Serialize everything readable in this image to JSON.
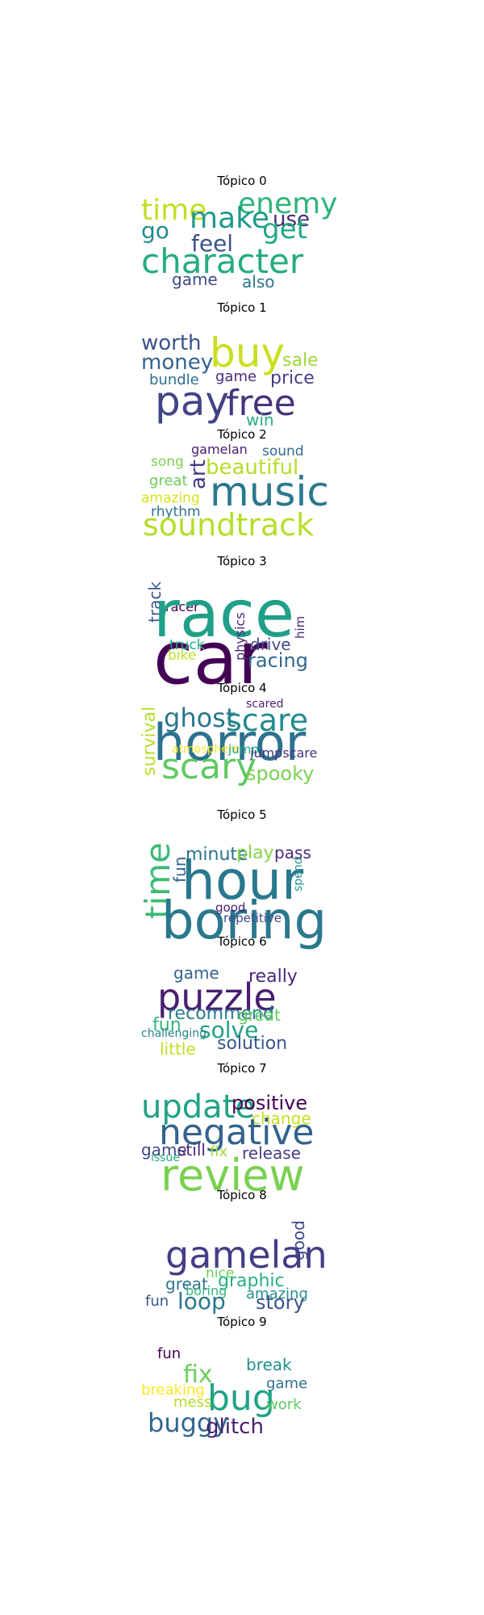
{
  "topics": [
    {
      "title": "Tópico 0",
      "words": [
        {
          "text": "time",
          "color": "#c2df23"
        },
        {
          "text": "enemy",
          "color": "#2fb47c"
        },
        {
          "text": "make",
          "color": "#1f9a8a"
        },
        {
          "text": "use",
          "color": "#482475"
        },
        {
          "text": "go",
          "color": "#238a8d"
        },
        {
          "text": "get",
          "color": "#22a884"
        },
        {
          "text": "feel",
          "color": "#3b528b"
        },
        {
          "text": "character",
          "color": "#25ab82"
        },
        {
          "text": "game",
          "color": "#3e4a89"
        },
        {
          "text": "also",
          "color": "#2c728e"
        }
      ]
    },
    {
      "title": "Tópico 1",
      "words": [
        {
          "text": "worth",
          "color": "#3b528b"
        },
        {
          "text": "buy",
          "color": "#c8e020"
        },
        {
          "text": "money",
          "color": "#33638d"
        },
        {
          "text": "sale",
          "color": "#a0da39"
        },
        {
          "text": "bundle",
          "color": "#2d708e"
        },
        {
          "text": "game",
          "color": "#482878"
        },
        {
          "text": "price",
          "color": "#433e85"
        },
        {
          "text": "pay",
          "color": "#414487"
        },
        {
          "text": "free",
          "color": "#46337e"
        },
        {
          "text": "win",
          "color": "#29af7f"
        }
      ]
    },
    {
      "title": "Tópico 2",
      "words": [
        {
          "text": "gamelan",
          "color": "#481f70"
        },
        {
          "text": "sound",
          "color": "#31688e"
        },
        {
          "text": "song",
          "color": "#7ad151"
        },
        {
          "text": "art",
          "color": "#443983"
        },
        {
          "text": "beautiful",
          "color": "#b5de2b"
        },
        {
          "text": "great",
          "color": "#6ccd5a"
        },
        {
          "text": "music",
          "color": "#2a788e"
        },
        {
          "text": "amazing",
          "color": "#d8e219"
        },
        {
          "text": "rhythm",
          "color": "#2c728e"
        },
        {
          "text": "soundtrack",
          "color": "#b5de2b"
        }
      ]
    },
    {
      "title": "Tópico 3",
      "words": [
        {
          "text": "track",
          "color": "#39568c"
        },
        {
          "text": "racer",
          "color": "#440154"
        },
        {
          "text": "race",
          "color": "#1fa088"
        },
        {
          "text": "car",
          "color": "#440154"
        },
        {
          "text": "truck",
          "color": "#22a884"
        },
        {
          "text": "physics",
          "color": "#482878"
        },
        {
          "text": "drive",
          "color": "#3e4a89"
        },
        {
          "text": "him",
          "color": "#472d7b"
        },
        {
          "text": "bike",
          "color": "#bddf26"
        },
        {
          "text": "racing",
          "color": "#31688e"
        }
      ]
    },
    {
      "title": "Tópico 4",
      "words": [
        {
          "text": "scared",
          "color": "#482475"
        },
        {
          "text": "ghost",
          "color": "#2a788e"
        },
        {
          "text": "scare",
          "color": "#238a8d"
        },
        {
          "text": "survival",
          "color": "#b5de2b"
        },
        {
          "text": "horror",
          "color": "#2c728e"
        },
        {
          "text": "atmosphere",
          "color": "#fde725"
        },
        {
          "text": "jump",
          "color": "#20a386"
        },
        {
          "text": "jumpscare",
          "color": "#46337e"
        },
        {
          "text": "scary",
          "color": "#5ec962"
        },
        {
          "text": "spooky",
          "color": "#7ad151"
        }
      ]
    },
    {
      "title": "Tópico 5",
      "words": [
        {
          "text": "minute",
          "color": "#2c728e"
        },
        {
          "text": "play",
          "color": "#86d549"
        },
        {
          "text": "pass",
          "color": "#482878"
        },
        {
          "text": "time",
          "color": "#3bbb75"
        },
        {
          "text": "fun",
          "color": "#33638d"
        },
        {
          "text": "hour",
          "color": "#2a788e"
        },
        {
          "text": "spend",
          "color": "#21918c"
        },
        {
          "text": "boring",
          "color": "#2a788e"
        },
        {
          "text": "good",
          "color": "#481f70"
        },
        {
          "text": "repetitive",
          "color": "#3e4a89"
        }
      ]
    },
    {
      "title": "Tópico 6",
      "words": [
        {
          "text": "game",
          "color": "#33638d"
        },
        {
          "text": "really",
          "color": "#482878"
        },
        {
          "text": "puzzle",
          "color": "#481f70"
        },
        {
          "text": "recommend",
          "color": "#287c8e"
        },
        {
          "text": "great",
          "color": "#5ec962"
        },
        {
          "text": "fun",
          "color": "#2fb47c"
        },
        {
          "text": "solve",
          "color": "#20a386"
        },
        {
          "text": "challenging",
          "color": "#26828e"
        },
        {
          "text": "solution",
          "color": "#39568c"
        },
        {
          "text": "little",
          "color": "#c2df23"
        }
      ]
    },
    {
      "title": "Tópico 7",
      "words": [
        {
          "text": "update",
          "color": "#20a386"
        },
        {
          "text": "positive",
          "color": "#440154"
        },
        {
          "text": "change",
          "color": "#c8e020"
        },
        {
          "text": "negative",
          "color": "#33638d"
        },
        {
          "text": "game",
          "color": "#3e4a89"
        },
        {
          "text": "still",
          "color": "#482475"
        },
        {
          "text": "issue",
          "color": "#25ab82"
        },
        {
          "text": "fix",
          "color": "#a0da39"
        },
        {
          "text": "release",
          "color": "#433e85"
        },
        {
          "text": "review",
          "color": "#7ad151"
        }
      ]
    },
    {
      "title": "Tópico 8",
      "words": [
        {
          "text": "good",
          "color": "#3e4a89"
        },
        {
          "text": "gamelan",
          "color": "#433e85"
        },
        {
          "text": "nice",
          "color": "#6ccd5a"
        },
        {
          "text": "great",
          "color": "#2c728e"
        },
        {
          "text": "graphic",
          "color": "#29af7f"
        },
        {
          "text": "boring",
          "color": "#35b779"
        },
        {
          "text": "amazing",
          "color": "#21918c"
        },
        {
          "text": "fun",
          "color": "#39568c"
        },
        {
          "text": "loop",
          "color": "#2a788e"
        },
        {
          "text": "story",
          "color": "#3b528b"
        }
      ]
    },
    {
      "title": "Tópico 9",
      "words": [
        {
          "text": "fun",
          "color": "#440154"
        },
        {
          "text": "break",
          "color": "#21918c"
        },
        {
          "text": "fix",
          "color": "#6ccd5a"
        },
        {
          "text": "game",
          "color": "#2c728e"
        },
        {
          "text": "breaking",
          "color": "#fde725"
        },
        {
          "text": "bug",
          "color": "#20a386"
        },
        {
          "text": "mess",
          "color": "#b5de2b"
        },
        {
          "text": "work",
          "color": "#5ec962"
        },
        {
          "text": "buggy",
          "color": "#31688e"
        },
        {
          "text": "glitch",
          "color": "#481f70"
        }
      ]
    }
  ]
}
